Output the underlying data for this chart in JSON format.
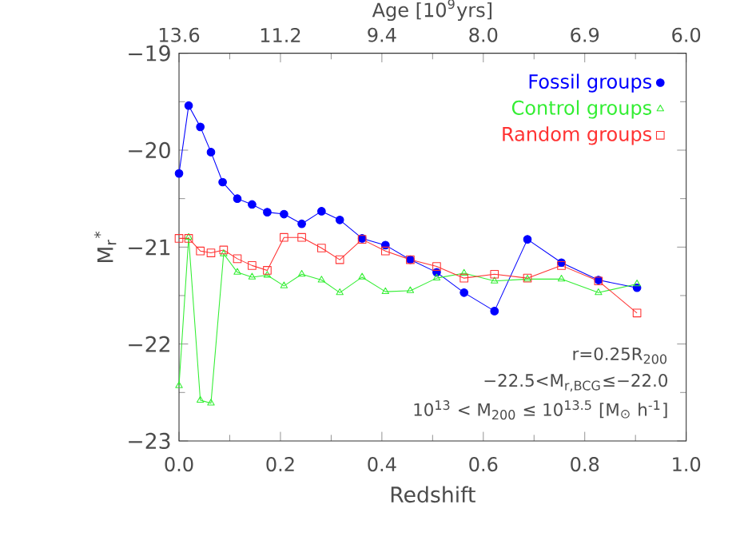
{
  "chart_data": {
    "type": "line",
    "xlabel": "Redshift",
    "ylabel": "M$_{r}$$^{*}$",
    "x2label": "Age  [10$^{9}$yrs]",
    "xlim": [
      0,
      1
    ],
    "xticks": [
      {
        "value": 0,
        "label": "0.0"
      },
      {
        "value": 0.2,
        "label": "0.2"
      },
      {
        "value": 0.4,
        "label": "0.4"
      },
      {
        "value": 0.6,
        "label": "0.6"
      },
      {
        "value": 0.8,
        "label": "0.8"
      },
      {
        "value": 1,
        "label": "1.0"
      }
    ],
    "ylim": [
      -23,
      -19
    ],
    "yticks": [
      {
        "value": -23,
        "label": "−23"
      },
      {
        "value": -22,
        "label": "−22"
      },
      {
        "value": -21,
        "label": "−21"
      },
      {
        "value": -20,
        "label": "−20"
      },
      {
        "value": -19,
        "label": "−19"
      }
    ],
    "grid": false,
    "legend": "top right",
    "series": [
      {
        "name": "Fossil groups",
        "color": "#0000ff",
        "marker": "circle",
        "x": [
          0.0,
          0.019,
          0.042,
          0.063,
          0.086,
          0.115,
          0.144,
          0.174,
          0.207,
          0.242,
          0.281,
          0.317,
          0.361,
          0.407,
          0.456,
          0.508,
          0.562,
          0.622,
          0.687,
          0.754,
          0.827,
          0.903
        ],
        "values": [
          -20.24,
          -19.54,
          -19.76,
          -20.02,
          -20.33,
          -20.5,
          -20.56,
          -20.64,
          -20.66,
          -20.76,
          -20.63,
          -20.72,
          -20.91,
          -20.98,
          -21.13,
          -21.26,
          -21.47,
          -21.66,
          -20.92,
          -21.16,
          -21.34,
          -21.42
        ]
      },
      {
        "name": "Control groups",
        "color": "#33ee33",
        "marker": "triangle",
        "x": [
          0.0,
          0.019,
          0.042,
          0.063,
          0.088,
          0.115,
          0.144,
          0.174,
          0.207,
          0.242,
          0.281,
          0.317,
          0.361,
          0.407,
          0.456,
          0.508,
          0.562,
          0.622,
          0.687,
          0.754,
          0.827,
          0.903
        ],
        "values": [
          -22.43,
          -20.9,
          -22.58,
          -22.61,
          -21.07,
          -21.26,
          -21.31,
          -21.29,
          -21.4,
          -21.28,
          -21.34,
          -21.47,
          -21.31,
          -21.46,
          -21.45,
          -21.32,
          -21.27,
          -21.35,
          -21.33,
          -21.33,
          -21.47,
          -21.38
        ]
      },
      {
        "name": "Random groups",
        "color": "#ff3333",
        "marker": "square",
        "x": [
          0.0,
          0.019,
          0.042,
          0.063,
          0.088,
          0.115,
          0.144,
          0.174,
          0.207,
          0.242,
          0.281,
          0.317,
          0.361,
          0.407,
          0.456,
          0.508,
          0.562,
          0.622,
          0.687,
          0.754,
          0.827,
          0.903
        ],
        "values": [
          -20.91,
          -20.91,
          -21.04,
          -21.06,
          -21.03,
          -21.12,
          -21.19,
          -21.24,
          -20.9,
          -20.9,
          -21.01,
          -21.13,
          -20.92,
          -21.04,
          -21.13,
          -21.2,
          -21.32,
          -21.28,
          -21.32,
          -21.19,
          -21.35,
          -21.68
        ]
      }
    ],
    "annotations": [
      "13.6",
      "11.2",
      "9.4",
      "8.0",
      "6.9",
      "6.0",
      "r=0.25R$_{200}$",
      "−22.5<M$_{r,BCG}$≤−22.0",
      "10$^{13}$ < M$_{200}$ ≤ 10$^{13.5}$ [M$_{⊙}$ h$^{-1}$]"
    ]
  }
}
